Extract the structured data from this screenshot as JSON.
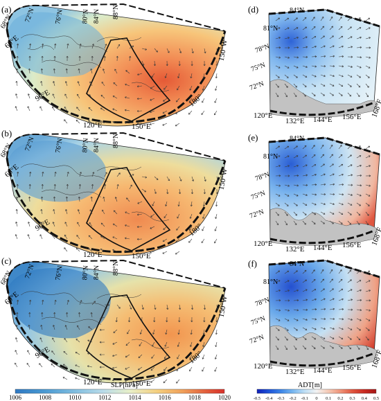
{
  "left_panels": [
    {
      "label": "(a)",
      "lat_labels": [
        "68°N",
        "72°N",
        "76°N",
        "80°N",
        "84°N",
        "88°N"
      ],
      "lon_labels": [
        "60°E",
        "90°E",
        "120°E",
        "150°E",
        "180°",
        "150°W"
      ]
    },
    {
      "label": "(b)",
      "lat_labels": [
        "68°N",
        "72°N",
        "76°N",
        "80°N",
        "84°N",
        "88°N"
      ],
      "lon_labels": [
        "60°E",
        "90°E",
        "120°E",
        "150°E",
        "180°",
        "150°W"
      ]
    },
    {
      "label": "(c)",
      "lat_labels": [
        "68°N",
        "72°N",
        "76°N",
        "80°N",
        "84°N",
        "88°N"
      ],
      "lon_labels": [
        "60°E",
        "90°E",
        "120°E",
        "150°E",
        "180°",
        "150°W"
      ]
    }
  ],
  "right_panels": [
    {
      "label": "(d)",
      "lat_labels": [
        "84°N",
        "81°N",
        "78°N",
        "75°N",
        "72°N"
      ],
      "lon_labels": [
        "120°E",
        "132°E",
        "144°E",
        "156°E",
        "168°E"
      ]
    },
    {
      "label": "(e)",
      "lat_labels": [
        "84°N",
        "81°N",
        "78°N",
        "75°N",
        "72°N"
      ],
      "lon_labels": [
        "120°E",
        "132°E",
        "144°E",
        "156°E",
        "168°E"
      ]
    },
    {
      "label": "(f)",
      "lat_labels": [
        "84°N",
        "81°N",
        "78°N",
        "75°N",
        "72°N"
      ],
      "lon_labels": [
        "120°E",
        "132°E",
        "144°E",
        "156°E",
        "168°E"
      ]
    }
  ],
  "slp_colorbar": {
    "title": "SLP[hPa]",
    "ticks": [
      "1006",
      "1008",
      "1010",
      "1012",
      "1014",
      "1016",
      "1018",
      "1020"
    ],
    "colors": [
      "#2f79c2",
      "#4a9ad3",
      "#7fbde0",
      "#b9dcea",
      "#e9f0c8",
      "#f5cf7e",
      "#f0a05a",
      "#e25a3a",
      "#d7302a"
    ]
  },
  "adt_colorbar": {
    "title": "ADT[m]",
    "ticks": [
      "-0.5",
      "-0.4",
      "-0.3",
      "-0.2",
      "-0.1",
      "0",
      "0.1",
      "0.2",
      "0.3",
      "0.4",
      "0.5"
    ],
    "colors": [
      "#1020b8",
      "#1e54d8",
      "#3d86e8",
      "#78b7f0",
      "#bfdff5",
      "#f3f3f3",
      "#f5c9b5",
      "#ef9378",
      "#e0563f",
      "#c92b22",
      "#a51616"
    ]
  }
}
